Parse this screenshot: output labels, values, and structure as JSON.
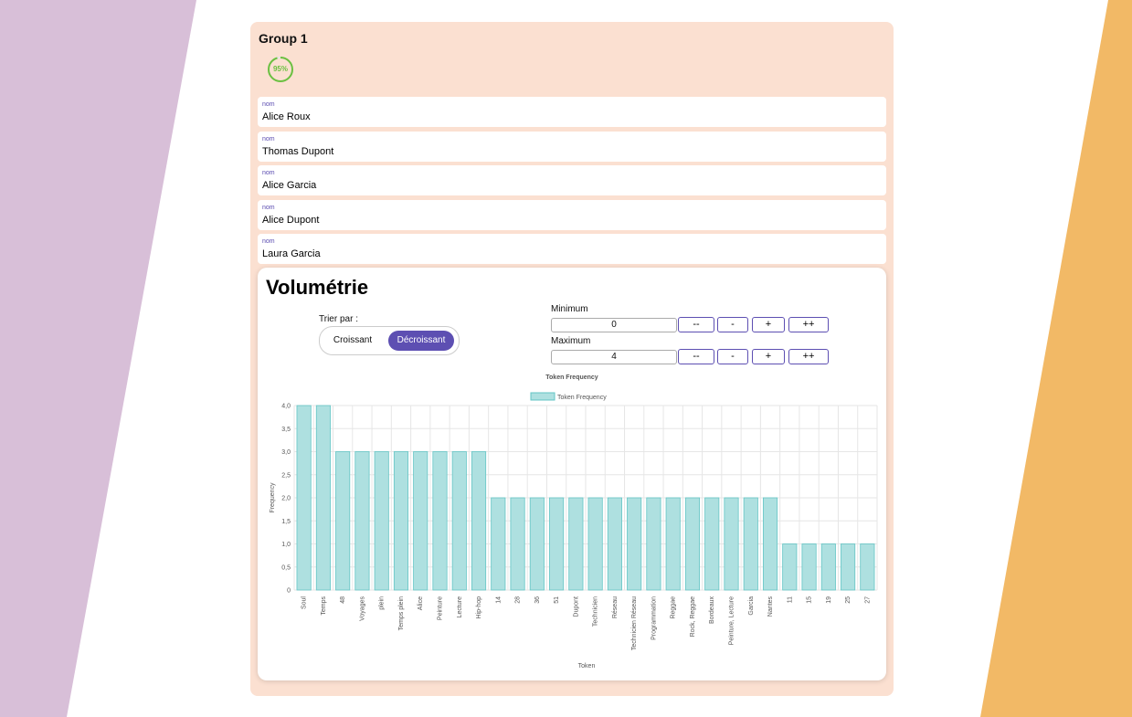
{
  "group": {
    "title": "Group 1",
    "progress_percent": 95,
    "progress_label": "95%",
    "progress_color": "#6cc040"
  },
  "people": [
    {
      "label": "nom",
      "value": "Alice Roux"
    },
    {
      "label": "nom",
      "value": "Thomas Dupont"
    },
    {
      "label": "nom",
      "value": "Alice Garcia"
    },
    {
      "label": "nom",
      "value": "Alice Dupont"
    },
    {
      "label": "nom",
      "value": "Laura Garcia"
    }
  ],
  "volumetrie": {
    "title": "Volumétrie",
    "sort_label": "Trier par :",
    "sort_options": [
      "Croissant",
      "Décroissant"
    ],
    "sort_selected": "Décroissant",
    "minimum_label": "Minimum",
    "minimum_value": "0",
    "maximum_label": "Maximum",
    "maximum_value": "4",
    "step_buttons": [
      "--",
      "-",
      "+",
      "++"
    ]
  },
  "colors": {
    "accent": "#5d4fb2",
    "bar_fill": "#aee0e0",
    "bar_stroke": "#63c5c5"
  },
  "chart_data": {
    "type": "bar",
    "title": "Token Frequency",
    "xlabel": "Token",
    "ylabel": "Frequency",
    "legend": "Token Frequency",
    "legend_position": "top",
    "grid": true,
    "ylim": [
      0,
      4
    ],
    "yticks": [
      "0",
      "0,5",
      "1,0",
      "1,5",
      "2,0",
      "2,5",
      "3,0",
      "3,5",
      "4,0"
    ],
    "categories": [
      "Soul",
      "Temps",
      "48",
      "Voyages",
      "plein",
      "Temps plein",
      "Alice",
      "Peinture",
      "Lecture",
      "Hip-hop",
      "14",
      "28",
      "36",
      "51",
      "Dupont",
      "Technicien",
      "Réseau",
      "Technicien Réseau",
      "Programmation",
      "Reggae",
      "Rock, Reggae",
      "Bordeaux",
      "Peinture, Lecture",
      "Garcia",
      "Nantes",
      "11",
      "15",
      "19",
      "25",
      "27"
    ],
    "values": [
      4,
      4,
      3,
      3,
      3,
      3,
      3,
      3,
      3,
      3,
      2,
      2,
      2,
      2,
      2,
      2,
      2,
      2,
      2,
      2,
      2,
      2,
      2,
      2,
      2,
      1,
      1,
      1,
      1,
      1
    ]
  }
}
